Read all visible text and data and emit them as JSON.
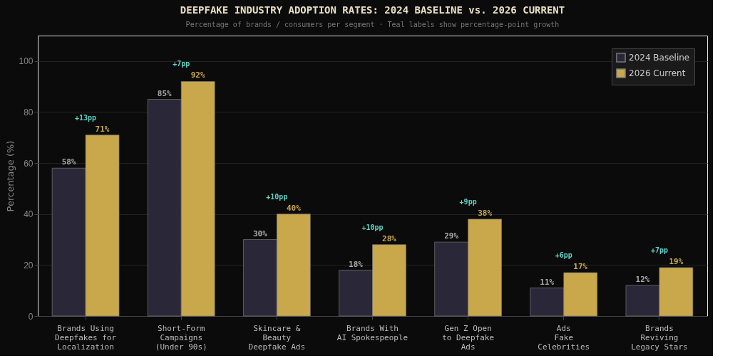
{
  "chart_data": {
    "type": "bar",
    "title": "DEEPFAKE INDUSTRY ADOPTION RATES: 2024 BASELINE vs. 2026 CURRENT",
    "subtitle": "Percentage of brands / consumers per segment  ·  Teal labels show percentage-point growth",
    "ylabel": "Percentage (%)",
    "categories": [
      "Brands Using\nDeepfakes for\nLocalization",
      "Short-Form\nCampaigns\n(Under 90s)",
      "Skincare &\nBeauty\nDeepfake Ads",
      "Brands With\nAI Spokespeople",
      "Gen Z Open\nto Deepfake\nAds",
      "Ads\nFake\nCelebrities",
      "Brands\nReviving\nLegacy Stars"
    ],
    "series": [
      {
        "name": "2024 Baseline",
        "color": "#2a2838",
        "values": [
          58,
          85,
          30,
          18,
          29,
          11,
          12
        ],
        "value_labels": [
          "58%",
          "85%",
          "30%",
          "18%",
          "29%",
          "11%",
          "12%"
        ]
      },
      {
        "name": "2026 Current",
        "color": "#c9a84c",
        "values": [
          71,
          92,
          40,
          28,
          38,
          17,
          19
        ],
        "value_labels": [
          "71%",
          "92%",
          "40%",
          "28%",
          "38%",
          "17%",
          "19%"
        ]
      }
    ],
    "annotations": [
      {
        "text": "+13pp",
        "x": "Brands Using\nDeepfakes for\nLocalization",
        "y": 71
      },
      {
        "text": "+7pp",
        "x": "Short-Form\nCampaigns\n(Under 90s)",
        "y": 92
      },
      {
        "text": "+10pp",
        "x": "Skincare &\nBeauty\nDeepfake Ads",
        "y": 40
      },
      {
        "text": "+10pp",
        "x": "Brands With\nAI Spokespeople",
        "y": 28
      },
      {
        "text": "+9pp",
        "x": "Gen Z Open\nto Deepfake\nAds",
        "y": 38
      },
      {
        "text": "+6pp",
        "x": "Ads\nFake\nCelebrities",
        "y": 17
      },
      {
        "text": "+7pp",
        "x": "Brands\nReviving\nLegacy Stars",
        "y": 19
      }
    ],
    "ylim": [
      0,
      110
    ],
    "yticks": [
      0,
      20,
      40,
      60,
      80,
      100
    ],
    "grid": "y",
    "legend": "top right"
  }
}
